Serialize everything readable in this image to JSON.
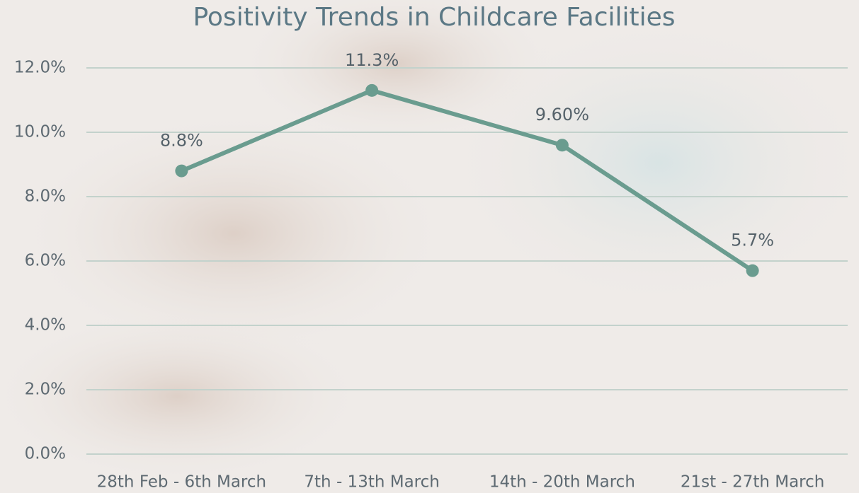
{
  "chart_data": {
    "type": "line",
    "title": "Positivity Trends in Childcare Facilities",
    "categories": [
      "28th Feb - 6th March",
      "7th - 13th March",
      "14th - 20th March",
      "21st - 27th March"
    ],
    "values": [
      8.8,
      11.3,
      9.6,
      5.7
    ],
    "value_labels": [
      "8.8%",
      "11.3%",
      "9.60%",
      "5.7%"
    ],
    "color": "#6a9c8f",
    "ylim": [
      0,
      12
    ],
    "yticks": [
      {
        "value": 0,
        "label": "0.0%"
      },
      {
        "value": 2,
        "label": "2.0%"
      },
      {
        "value": 4,
        "label": "4.0%"
      },
      {
        "value": 6,
        "label": "6.0%"
      },
      {
        "value": 8,
        "label": "8.0%"
      },
      {
        "value": 10,
        "label": "10.0%"
      },
      {
        "value": 12,
        "label": "12.0%"
      }
    ],
    "grid": true
  }
}
